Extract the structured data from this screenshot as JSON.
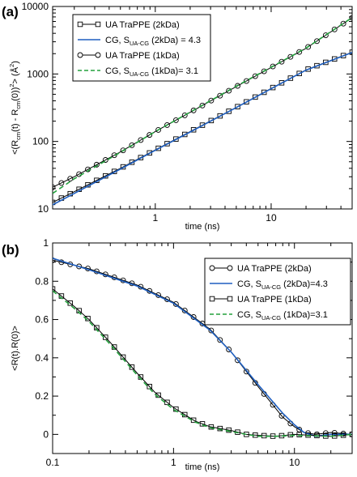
{
  "chart_data": [
    {
      "panel_label": "(a)",
      "type": "line",
      "x_scale": "log",
      "y_scale": "log",
      "xlim": [
        0.13,
        50
      ],
      "ylim": [
        10,
        10000
      ],
      "xlabel": "time (ns)",
      "ylabel": {
        "p1": "<(R",
        "s1": "cm",
        "p2": "(t) - R",
        "s2": "cm",
        "p3": "(0))",
        "sup": "2",
        "p4": "> (Å",
        "sup2": "2",
        "p5": ")"
      },
      "x_ticks": [
        {
          "value": 1,
          "label": "1"
        },
        {
          "value": 10,
          "label": "10"
        }
      ],
      "y_ticks": [
        {
          "value": 10,
          "label": "10"
        },
        {
          "value": 100,
          "label": "100"
        },
        {
          "value": 1000,
          "label": "1000"
        },
        {
          "value": 10000,
          "label": "10000"
        }
      ],
      "legend_position": "top-left",
      "series": [
        {
          "name": "UA TraPPE (2kDa)",
          "marker": "square",
          "color": "#000000",
          "x": [
            0.13,
            0.2,
            0.5,
            1,
            2,
            5,
            10,
            20,
            50
          ],
          "y": [
            12.5,
            18,
            40,
            75,
            140,
            320,
            610,
            1150,
            2100
          ]
        },
        {
          "name": {
            "main": "CG, S",
            "sub": "UA-CG",
            "rest": " (2kDa) = 4.3"
          },
          "marker": "none",
          "color": "#1f5fc0",
          "dash": "solid",
          "x": [
            0.13,
            0.2,
            0.5,
            1,
            2,
            5,
            10,
            20,
            50
          ],
          "y": [
            11.5,
            17,
            39,
            74,
            138,
            318,
            605,
            1140,
            2080
          ]
        },
        {
          "name": "UA TraPPE (1kDa)",
          "marker": "circle",
          "color": "#000000",
          "x": [
            0.13,
            0.2,
            0.5,
            1,
            2,
            5,
            10,
            20,
            50
          ],
          "y": [
            21,
            30,
            70,
            140,
            270,
            650,
            1250,
            2400,
            6800
          ]
        },
        {
          "name": {
            "main": "CG, S",
            "sub": "UA-CG",
            "rest": " (1kDa)= 3.1"
          },
          "marker": "none",
          "color": "#22a03c",
          "dash": "dashed",
          "x": [
            0.13,
            0.2,
            0.5,
            1,
            2,
            5,
            10,
            20,
            50
          ],
          "y": [
            17,
            28,
            69,
            140,
            272,
            660,
            1260,
            2420,
            6850
          ]
        }
      ]
    },
    {
      "panel_label": "(b)",
      "type": "line",
      "x_scale": "log",
      "y_scale": "linear",
      "xlim": [
        0.1,
        30
      ],
      "ylim": [
        -0.1,
        1.0
      ],
      "xlabel": "time (ns)",
      "ylabel": {
        "text": "<R(t).R(0)>"
      },
      "x_ticks": [
        {
          "value": 0.1,
          "label": "0.1"
        },
        {
          "value": 1,
          "label": "1"
        },
        {
          "value": 10,
          "label": "10"
        }
      ],
      "y_ticks": [
        {
          "value": 0,
          "label": "0"
        },
        {
          "value": 0.2,
          "label": "0.2"
        },
        {
          "value": 0.4,
          "label": "0.4"
        },
        {
          "value": 0.6,
          "label": "0.6"
        },
        {
          "value": 0.8,
          "label": "0.8"
        },
        {
          "value": 1.0,
          "label": "1"
        }
      ],
      "legend_position": "top-right",
      "series": [
        {
          "name": "UA TraPPE (2kDa)",
          "marker": "circle",
          "color": "#000000",
          "x": [
            0.1,
            0.2,
            0.5,
            1,
            2,
            3,
            5,
            8,
            10,
            12,
            15,
            20,
            30
          ],
          "y": [
            0.91,
            0.865,
            0.78,
            0.69,
            0.55,
            0.43,
            0.25,
            0.09,
            0.04,
            0.01,
            0.0,
            0.01,
            0.0
          ],
          "marker_step": 2
        },
        {
          "name": {
            "main": "CG, S",
            "sub": "UA-CG",
            "rest": " (2kDa)=4.3"
          },
          "marker": "none",
          "color": "#1f5fc0",
          "dash": "solid",
          "x": [
            0.1,
            0.2,
            0.5,
            1,
            2,
            3,
            5,
            8,
            10,
            12,
            15,
            20,
            30
          ],
          "y": [
            0.92,
            0.86,
            0.775,
            0.685,
            0.545,
            0.43,
            0.26,
            0.11,
            0.05,
            0.01,
            -0.01,
            0.0,
            0.0
          ]
        },
        {
          "name": "UA TraPPE (1kDa)",
          "marker": "square",
          "color": "#000000",
          "x": [
            0.1,
            0.15,
            0.2,
            0.3,
            0.5,
            0.7,
            1,
            1.5,
            2,
            3,
            4,
            5,
            7,
            10,
            20,
            30
          ],
          "y": [
            0.76,
            0.67,
            0.6,
            0.48,
            0.32,
            0.22,
            0.14,
            0.07,
            0.04,
            0.02,
            0.0,
            -0.005,
            -0.01,
            0.0,
            -0.01,
            0.0
          ],
          "marker_step": 1
        },
        {
          "name": {
            "main": "CG, S",
            "sub": "UA-CG",
            "rest": " (1kDa)=3.1"
          },
          "marker": "none",
          "color": "#22a03c",
          "dash": "dashed",
          "x": [
            0.1,
            0.15,
            0.2,
            0.3,
            0.5,
            0.7,
            1,
            1.5,
            2,
            3,
            4,
            5,
            7,
            10,
            20,
            30
          ],
          "y": [
            0.75,
            0.66,
            0.59,
            0.47,
            0.31,
            0.21,
            0.13,
            0.065,
            0.035,
            0.015,
            0.0,
            -0.01,
            -0.01,
            -0.005,
            -0.01,
            0.0
          ]
        }
      ]
    }
  ]
}
